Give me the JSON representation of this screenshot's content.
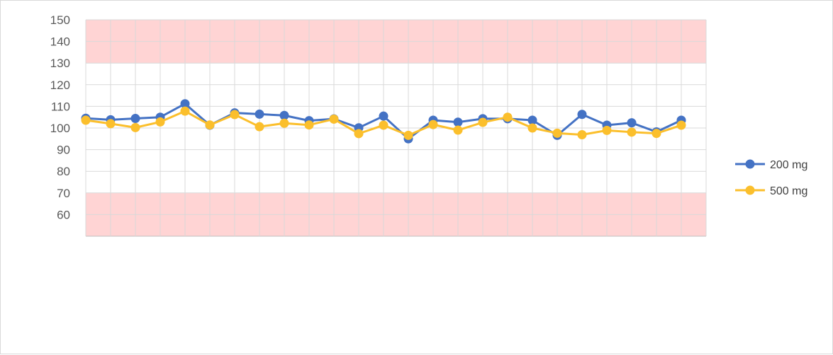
{
  "chart_data": {
    "type": "line",
    "title": "",
    "xlabel": "",
    "ylabel": "",
    "ylim": [
      50,
      150
    ],
    "yticks": [
      60,
      70,
      80,
      90,
      100,
      110,
      120,
      130,
      140,
      150
    ],
    "point_count": 25,
    "grid": true,
    "legend": "right",
    "bands": [
      {
        "from": 130,
        "to": 150,
        "color": "#ffcccc"
      },
      {
        "from": 50,
        "to": 70,
        "color": "#ffcccc"
      }
    ],
    "series": [
      {
        "name": "200 mg",
        "color": "#4472c4",
        "values": [
          104.5,
          103.8,
          104.4,
          105,
          111.2,
          101.3,
          107,
          106.4,
          105.8,
          103.4,
          104.2,
          100.1,
          105.5,
          95,
          103.6,
          102.7,
          104.3,
          104.3,
          103.6,
          96.6,
          106.3,
          101.3,
          102.4,
          98.2,
          103.6
        ]
      },
      {
        "name": "500 mg",
        "color": "#fbbf2c",
        "values": [
          103.6,
          102,
          100.2,
          102.8,
          107.8,
          101.4,
          106.2,
          100.6,
          102.2,
          101.4,
          104.1,
          97.4,
          101.3,
          96.6,
          101.6,
          99,
          102.6,
          105,
          100,
          97.6,
          96.9,
          98.9,
          98.1,
          97.5,
          101.3
        ]
      }
    ]
  }
}
